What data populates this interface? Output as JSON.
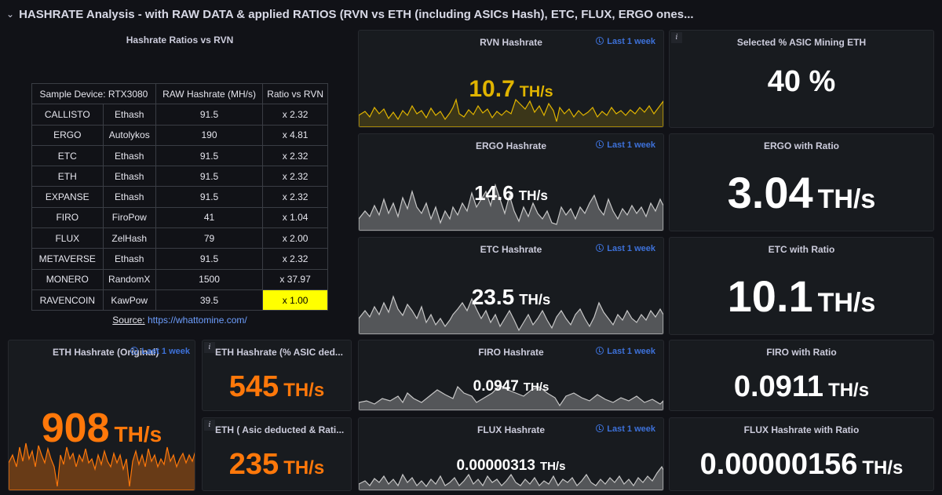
{
  "row": {
    "title": "HASHRATE Analysis - with RAW DATA & applied RATIOS (RVN vs ETH (including ASICs Hash), ETC, FLUX, ERGO ones..."
  },
  "ratios_table": {
    "title": "Hashrate Ratios vs RVN",
    "headers": [
      "Sample Device: RTX3080",
      "RAW Hashrate (MH/s)",
      "Ratio vs RVN"
    ],
    "rows": [
      {
        "coin": "CALLISTO",
        "algo": "Ethash",
        "raw": "91.5",
        "ratio": "x 2.32"
      },
      {
        "coin": "ERGO",
        "algo": "Autolykos",
        "raw": "190",
        "ratio": "x 4.81"
      },
      {
        "coin": "ETC",
        "algo": "Ethash",
        "raw": "91.5",
        "ratio": "x 2.32"
      },
      {
        "coin": "ETH",
        "algo": "Ethash",
        "raw": "91.5",
        "ratio": "x 2.32"
      },
      {
        "coin": "EXPANSE",
        "algo": "Ethash",
        "raw": "91.5",
        "ratio": "x 2.32"
      },
      {
        "coin": "FIRO",
        "algo": "FiroPow",
        "raw": "41",
        "ratio": "x 1.04"
      },
      {
        "coin": "FLUX",
        "algo": "ZelHash",
        "raw": "79",
        "ratio": "x 2.00"
      },
      {
        "coin": "METAVERSE",
        "algo": "Ethash",
        "raw": "91.5",
        "ratio": "x 2.32"
      },
      {
        "coin": "MONERO",
        "algo": "RandomX",
        "raw": "1500",
        "ratio": "x 37.97"
      },
      {
        "coin": "RAVENCOIN",
        "algo": "KawPow",
        "raw": "39.5",
        "ratio": "x 1.00"
      }
    ],
    "highlight_color": "#ffff00",
    "source_label": "Source:",
    "source_link": "https://whattomine.com/"
  },
  "time_range": "Last 1 week",
  "colors": {
    "yellow": "#e0b400",
    "gray": "#c7c7c7",
    "orange": "#ff780a",
    "white": "#ffffff",
    "link": "#3d71d9"
  },
  "panels": {
    "rvn": {
      "title": "RVN Hashrate",
      "value": "10.7",
      "unit": "TH/s"
    },
    "asic_pct": {
      "title": "Selected % ASIC Mining ETH",
      "value": "40 %"
    },
    "ergo": {
      "title": "ERGO Hashrate",
      "value": "14.6",
      "unit": "TH/s"
    },
    "ergo_ratio": {
      "title": "ERGO with Ratio",
      "value": "3.04",
      "unit": "TH/s"
    },
    "etc": {
      "title": "ETC Hashrate",
      "value": "23.5",
      "unit": "TH/s"
    },
    "etc_ratio": {
      "title": "ETC with Ratio",
      "value": "10.1",
      "unit": "TH/s"
    },
    "firo": {
      "title": "FIRO Hashrate",
      "value": "0.0947",
      "unit": "TH/s"
    },
    "firo_ratio": {
      "title": "FIRO with Ratio",
      "value": "0.0911",
      "unit": "TH/s"
    },
    "flux": {
      "title": "FLUX Hashrate",
      "value": "0.00000313",
      "unit": "TH/s"
    },
    "flux_ratio": {
      "title": "FLUX Hashrate with Ratio",
      "value": "0.00000156",
      "unit": "TH/s"
    },
    "eth": {
      "title": "ETH Hashrate (Original)",
      "value": "908",
      "unit": "TH/s"
    },
    "eth_asic": {
      "title": "ETH Hashrate (% ASIC ded...",
      "value": "545",
      "unit": "TH/s"
    },
    "eth_asic_ratio": {
      "title": "ETH ( Asic deducted & Rati...",
      "value": "235",
      "unit": "TH/s"
    }
  }
}
